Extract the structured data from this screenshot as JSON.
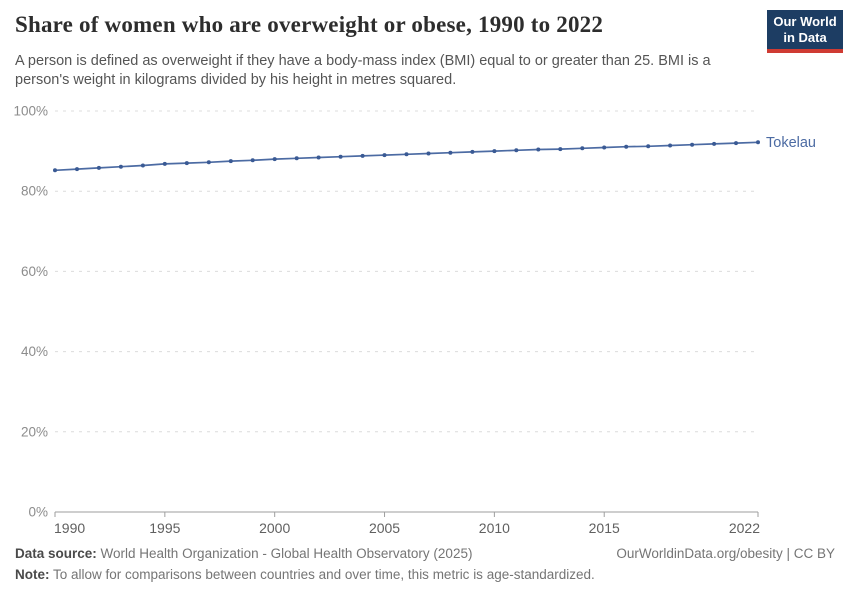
{
  "header": {
    "title": "Share of women who are overweight or obese, 1990 to 2022",
    "subtitle": "A person is defined as overweight if they have a body-mass index (BMI) equal to or greater than 25. BMI is a person's weight in kilograms divided by his height in metres squared.",
    "logo": {
      "line1": "Our World",
      "line2": "in Data"
    }
  },
  "chart_data": {
    "type": "line",
    "title": "Share of women who are overweight or obese, 1990 to 2022",
    "x": [
      1990,
      1991,
      1992,
      1993,
      1994,
      1995,
      1996,
      1997,
      1998,
      1999,
      2000,
      2001,
      2002,
      2003,
      2004,
      2005,
      2006,
      2007,
      2008,
      2009,
      2010,
      2011,
      2012,
      2013,
      2014,
      2015,
      2016,
      2017,
      2018,
      2019,
      2020,
      2021,
      2022
    ],
    "series": [
      {
        "name": "Tokelau",
        "values": [
          85.2,
          85.5,
          85.8,
          86.1,
          86.4,
          86.8,
          87.0,
          87.2,
          87.5,
          87.7,
          88.0,
          88.2,
          88.4,
          88.6,
          88.8,
          89.0,
          89.2,
          89.4,
          89.6,
          89.8,
          90.0,
          90.2,
          90.4,
          90.5,
          90.7,
          90.9,
          91.1,
          91.2,
          91.4,
          91.6,
          91.8,
          92.0,
          92.2
        ]
      }
    ],
    "xlabel": "",
    "ylabel": "",
    "xlim": [
      1990,
      2022
    ],
    "ylim": [
      0,
      100
    ],
    "yticks": [
      {
        "value": 0,
        "label": "0%"
      },
      {
        "value": 20,
        "label": "20%"
      },
      {
        "value": 40,
        "label": "40%"
      },
      {
        "value": 60,
        "label": "60%"
      },
      {
        "value": 80,
        "label": "80%"
      },
      {
        "value": 100,
        "label": "100%"
      }
    ],
    "xticks": [
      {
        "value": 1990,
        "label": "1990"
      },
      {
        "value": 1995,
        "label": "1995"
      },
      {
        "value": 2000,
        "label": "2000"
      },
      {
        "value": 2005,
        "label": "2005"
      },
      {
        "value": 2010,
        "label": "2010"
      },
      {
        "value": 2015,
        "label": "2015"
      },
      {
        "value": 2022,
        "label": "2022"
      }
    ],
    "grid": "horizontal-dashed",
    "legend_position": "end-of-line"
  },
  "colors": {
    "line": "#4c6ba3",
    "dot": "#3a5a94",
    "entity_label": "#4c6ba3",
    "grid": "#dcdcdc",
    "axis": "#9e9e9e",
    "ytick_text": "#8c8c8c",
    "xtick_text": "#606060",
    "logo_bg": "#1d3d63",
    "logo_stripe": "#cf3b33"
  },
  "footer": {
    "datasource_label": "Data source:",
    "datasource": " World Health Organization - Global Health Observatory (2025)",
    "link": "OurWorldinData.org/obesity | CC BY",
    "note_label": "Note:",
    "note": " To allow for comparisons between countries and over time, this metric is age-standardized."
  }
}
